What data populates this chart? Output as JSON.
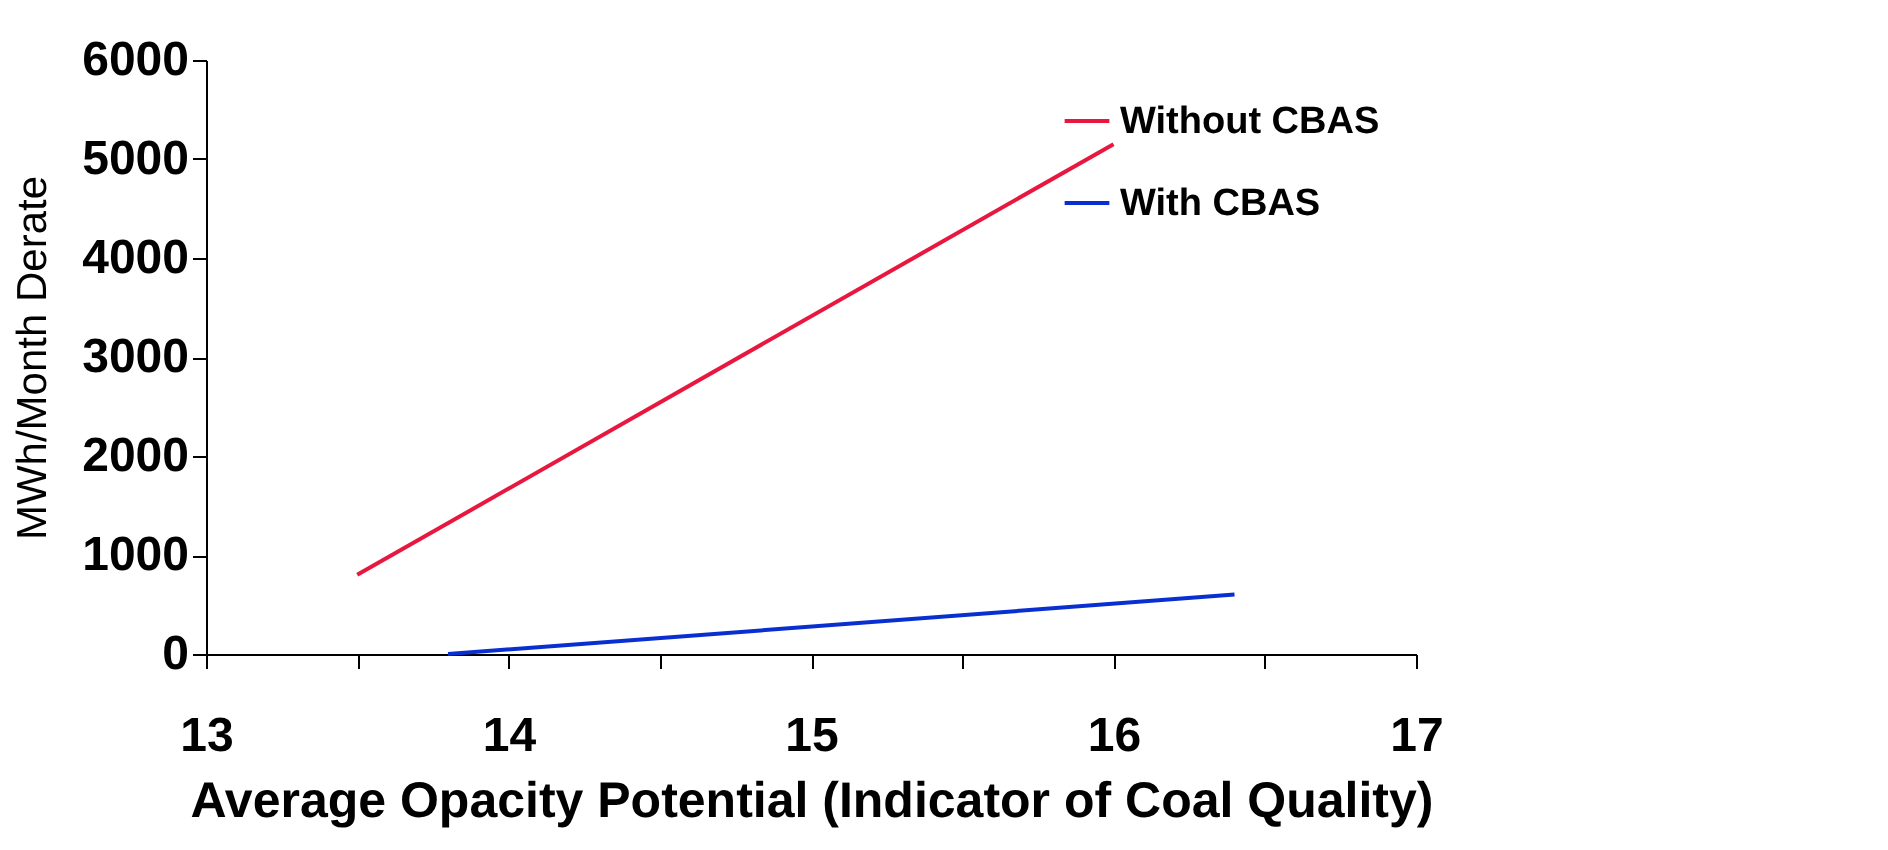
{
  "chart_data": {
    "type": "line",
    "xlabel": "Average Opacity Potential (Indicator of Coal Quality)",
    "ylabel": "MWh/Month Derate",
    "series": [
      {
        "name": "Without CBAS",
        "color": "#e8173f",
        "x": [
          13.5,
          16
        ],
        "values": [
          800,
          5150
        ]
      },
      {
        "name": "With CBAS",
        "color": "#0a2fd0",
        "x": [
          13.8,
          16.4
        ],
        "values": [
          0,
          600
        ]
      }
    ],
    "xlim": [
      13,
      17
    ],
    "xticks": [
      13,
      {
        "value": 13.5,
        "label": null
      },
      14,
      {
        "value": 14.5,
        "label": null
      },
      15,
      {
        "value": 15.5,
        "label": null
      },
      16,
      {
        "value": 16.5,
        "label": null
      },
      17
    ],
    "ylim": [
      0,
      6000
    ],
    "yticks": [
      0,
      1000,
      2000,
      3000,
      4000,
      5000,
      6000
    ],
    "legend": "top right",
    "grid": false,
    "marker": "none",
    "line_style": "solid"
  }
}
